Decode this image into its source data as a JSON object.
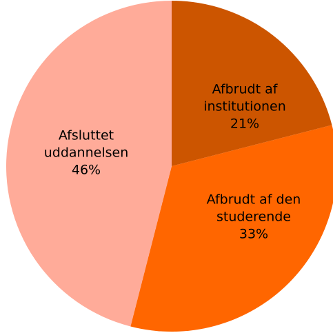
{
  "chart_data": {
    "type": "pie",
    "categories": [
      "Afbrudt af institutionen",
      "Afbrudt af den studerende",
      "Afsluttet uddannelsen"
    ],
    "values": [
      21,
      33,
      46
    ],
    "value_labels": [
      "21%",
      "33%",
      "46%"
    ],
    "colors": [
      "#cc5500",
      "#ff6600",
      "#ffab99"
    ]
  }
}
